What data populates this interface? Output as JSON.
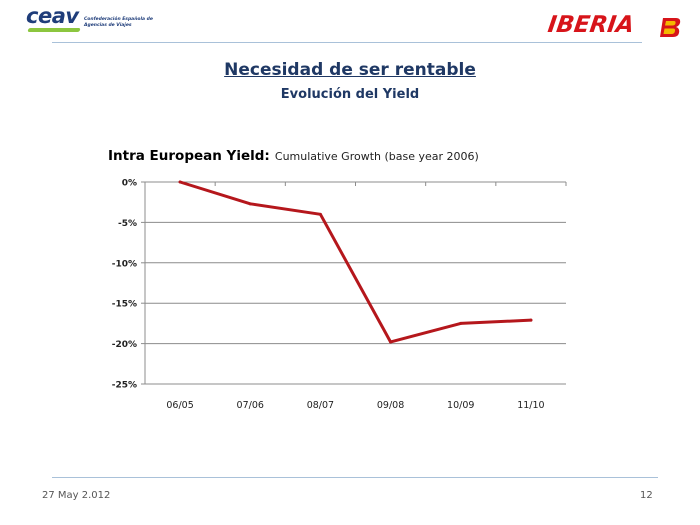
{
  "header": {
    "ceav_logo_text": "ceav",
    "ceav_logo_subtitle": "Confederación Española de Agencias de Viajes",
    "iberia_logo_text": "IBERIA",
    "brand_colors": {
      "ceav_blue": "#1f3d7a",
      "ceav_green": "#8cc63f",
      "iberia_red": "#d7141a",
      "iberia_yellow": "#f4b700"
    }
  },
  "slide": {
    "title": "Necesidad de ser rentable",
    "subtitle": "Evolución del Yield"
  },
  "chart_data": {
    "type": "line",
    "title_bold": "Intra European Yield:",
    "title_light": "Cumulative Growth (base year 2006)",
    "categories": [
      "06/05",
      "07/06",
      "08/07",
      "09/08",
      "10/09",
      "11/10"
    ],
    "series": [
      {
        "values": [
          0,
          -2.7,
          -4.0,
          -19.8,
          -17.5,
          -17.1
        ],
        "color": "#b5171c"
      }
    ],
    "y_ticks": [
      "0%",
      "-5%",
      "-10%",
      "-15%",
      "-20%",
      "-25%"
    ],
    "ylim": [
      -25,
      0
    ],
    "y_unit": "%",
    "grid": true,
    "legend": "none"
  },
  "footer": {
    "date": "27 May 2.012",
    "page_number": "12"
  }
}
